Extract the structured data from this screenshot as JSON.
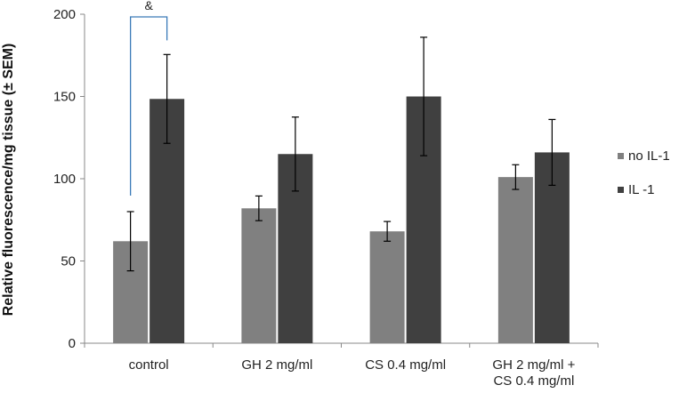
{
  "chart_data": {
    "type": "bar",
    "title": "",
    "xlabel": "",
    "ylabel": "Relative fluorescence/mg tissue (± SEM)",
    "ylim": [
      0,
      200
    ],
    "yticks": [
      0,
      50,
      100,
      150,
      200
    ],
    "grid": false,
    "legend_position": "right",
    "categories": [
      [
        "control"
      ],
      [
        "GH 2 mg/ml"
      ],
      [
        "CS 0.4 mg/ml"
      ],
      [
        "GH 2 mg/ml +",
        "CS 0.4 mg/ml"
      ]
    ],
    "series": [
      {
        "name": "no IL-1",
        "color": "#808080",
        "values": [
          62,
          82,
          68,
          101
        ],
        "errors": [
          18,
          7.5,
          6,
          7.5
        ]
      },
      {
        "name": "IL -1",
        "color": "#404040",
        "values": [
          148.5,
          115,
          150,
          116
        ],
        "errors": [
          27,
          22.5,
          36,
          20
        ]
      }
    ],
    "annotations": [
      {
        "text": "&",
        "type": "bracket",
        "category_index": 0,
        "color": "#3a7ab8"
      }
    ]
  }
}
